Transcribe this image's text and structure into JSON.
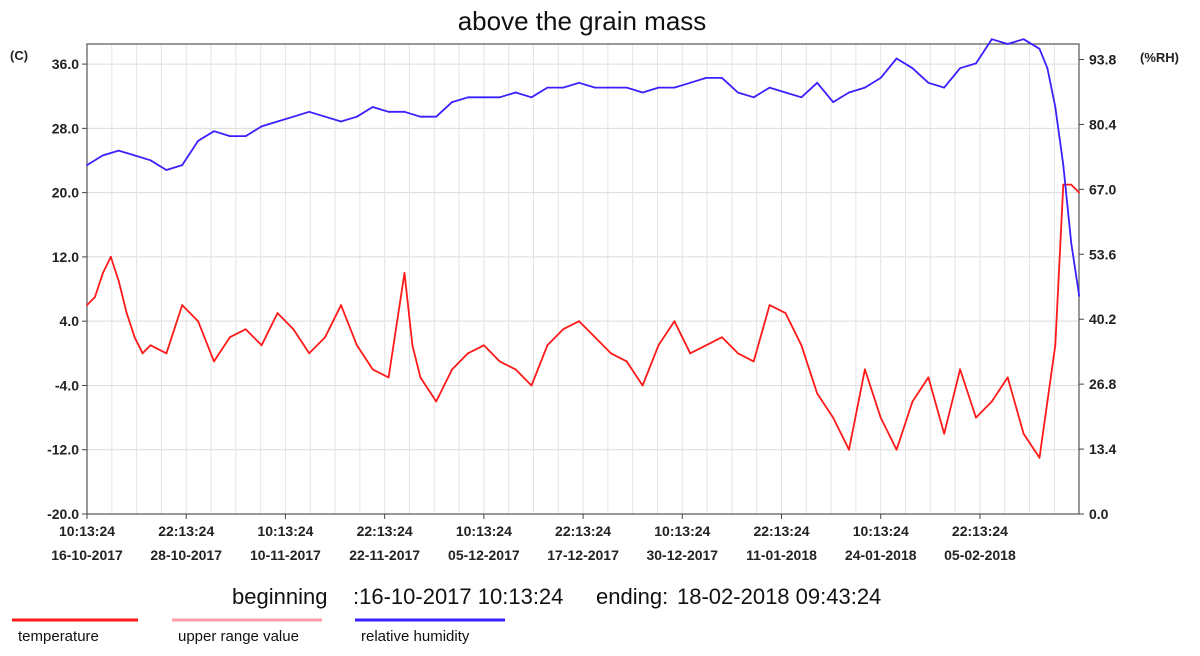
{
  "chart_data": {
    "type": "line",
    "title": "above the grain mass",
    "left_axis_unit": "(C)",
    "right_axis_unit": "(%RH)",
    "left_axis": {
      "min": -20.0,
      "max": 38.5,
      "ticks": [
        -20.0,
        -12.0,
        -4.0,
        4.0,
        12.0,
        20.0,
        28.0,
        36.0
      ],
      "tick_labels": [
        "-20.0",
        "-12.0",
        "-4.0",
        "4.0",
        "12.0",
        "20.0",
        "28.0",
        "36.0"
      ]
    },
    "right_axis": {
      "min": 0.0,
      "max": 97.0,
      "ticks": [
        0.0,
        13.4,
        26.8,
        40.2,
        53.6,
        67.0,
        80.4,
        93.8
      ],
      "tick_labels": [
        "0.0",
        "13.4",
        "26.8",
        "40.2",
        "53.6",
        "67.0",
        "80.4",
        "93.8"
      ]
    },
    "x_ticks": [
      {
        "time": "10:13:24",
        "date": "16-10-2017"
      },
      {
        "time": "22:13:24",
        "date": "28-10-2017"
      },
      {
        "time": "10:13:24",
        "date": "10-11-2017"
      },
      {
        "time": "22:13:24",
        "date": "22-11-2017"
      },
      {
        "time": "10:13:24",
        "date": "05-12-2017"
      },
      {
        "time": "22:13:24",
        "date": "17-12-2017"
      },
      {
        "time": "10:13:24",
        "date": "30-12-2017"
      },
      {
        "time": "22:13:24",
        "date": "11-01-2018"
      },
      {
        "time": "10:13:24",
        "date": "24-01-2018"
      },
      {
        "time": "22:13:24",
        "date": "05-02-2018"
      }
    ],
    "x_range_days": [
      0,
      124.98
    ],
    "x_tick_days": [
      0,
      12.5,
      25,
      37.5,
      50,
      62.5,
      75,
      87.5,
      100,
      112.5
    ],
    "grid": true,
    "series": [
      {
        "name": "temperature",
        "axis": "left",
        "color": "#ff1a1a",
        "x_days": [
          0,
          1,
          2,
          3,
          4,
          5,
          6,
          7,
          8,
          10,
          12,
          14,
          16,
          18,
          20,
          22,
          24,
          26,
          28,
          30,
          31,
          32,
          34,
          36,
          38,
          40,
          41,
          42,
          44,
          46,
          48,
          50,
          52,
          54,
          56,
          58,
          60,
          62,
          64,
          66,
          68,
          70,
          72,
          74,
          76,
          78,
          80,
          82,
          84,
          86,
          88,
          90,
          92,
          94,
          96,
          98,
          100,
          102,
          104,
          106,
          108,
          110,
          112,
          114,
          116,
          118,
          120,
          121,
          122,
          123,
          124,
          125
        ],
        "values": [
          6,
          7,
          10,
          12,
          9,
          5,
          2,
          0,
          1,
          0,
          6,
          4,
          -1,
          2,
          3,
          1,
          5,
          3,
          0,
          2,
          4,
          6,
          1,
          -2,
          -3,
          10,
          1,
          -3,
          -6,
          -2,
          0,
          1,
          -1,
          -2,
          -4,
          1,
          3,
          4,
          2,
          0,
          -1,
          -4,
          1,
          4,
          0,
          1,
          2,
          0,
          -1,
          6,
          5,
          1,
          -5,
          -8,
          -12,
          -2,
          -8,
          -12,
          -6,
          -3,
          -10,
          -2,
          -8,
          -6,
          -3,
          -10,
          -13,
          -6,
          1,
          21,
          21,
          20
        ]
      },
      {
        "name": "upper range value",
        "axis": "left",
        "color": "#ff9da8",
        "x_days": [],
        "values": []
      },
      {
        "name": "relative humidity",
        "axis": "right",
        "color": "#3b20ff",
        "x_days": [
          0,
          2,
          4,
          6,
          8,
          10,
          12,
          14,
          16,
          18,
          20,
          22,
          24,
          26,
          28,
          30,
          32,
          34,
          36,
          38,
          40,
          42,
          44,
          46,
          48,
          50,
          52,
          54,
          56,
          58,
          60,
          62,
          64,
          66,
          68,
          70,
          72,
          74,
          76,
          78,
          80,
          82,
          84,
          86,
          88,
          90,
          92,
          94,
          96,
          98,
          100,
          102,
          104,
          106,
          108,
          110,
          112,
          114,
          116,
          118,
          120,
          121,
          122,
          123,
          124,
          125
        ],
        "values": [
          72,
          74,
          75,
          74,
          73,
          71,
          72,
          77,
          79,
          78,
          78,
          80,
          81,
          82,
          83,
          82,
          81,
          82,
          84,
          83,
          83,
          82,
          82,
          85,
          86,
          86,
          86,
          87,
          86,
          88,
          88,
          89,
          88,
          88,
          88,
          87,
          88,
          88,
          89,
          90,
          90,
          87,
          86,
          88,
          87,
          86,
          89,
          85,
          87,
          88,
          90,
          94,
          92,
          89,
          88,
          92,
          93,
          98,
          97,
          98,
          96,
          92,
          84,
          72,
          56,
          45
        ]
      }
    ]
  },
  "summary": {
    "beginning_label": "beginning",
    "beginning_value": ":16-10-2017 10:13:24",
    "ending_label": "ending:",
    "ending_value": "18-02-2018 09:43:24"
  },
  "legend": {
    "items": [
      {
        "label": "temperature",
        "color": "#ff1a1a"
      },
      {
        "label": "upper range value",
        "color": "#ff9da8"
      },
      {
        "label": "relative humidity",
        "color": "#3b20ff"
      }
    ]
  }
}
